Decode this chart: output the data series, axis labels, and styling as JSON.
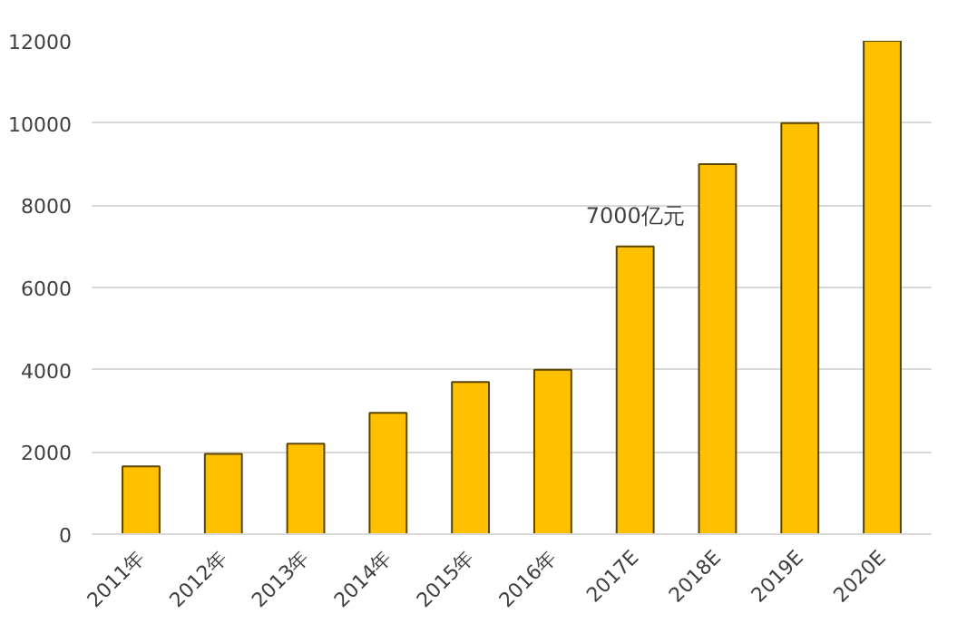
{
  "chart_data": {
    "type": "bar",
    "categories": [
      "2011年",
      "2012年",
      "2013年",
      "2014年",
      "2015年",
      "2016年",
      "2017E",
      "2018E",
      "2019E",
      "2020E"
    ],
    "values": [
      1650,
      1950,
      2200,
      2950,
      3700,
      4000,
      7000,
      9000,
      10000,
      12000
    ],
    "color": "#ffc000",
    "ylim": [
      0,
      12000
    ],
    "yticks": [
      0,
      2000,
      4000,
      6000,
      8000,
      10000,
      12000
    ],
    "grid": "y",
    "annotations": [
      {
        "text": "7000亿元",
        "x": "2017E",
        "y": 7000
      }
    ]
  }
}
